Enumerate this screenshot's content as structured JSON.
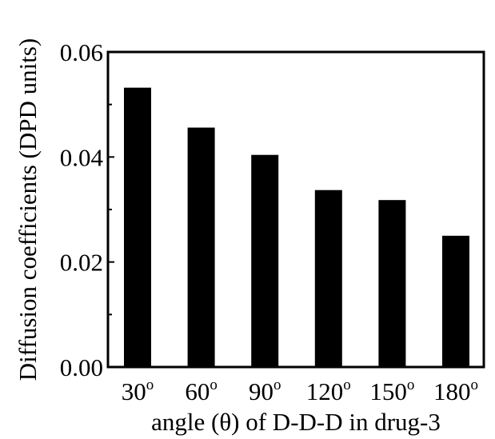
{
  "chart_data": {
    "type": "bar",
    "categories": [
      "30",
      "60",
      "90",
      "120",
      "150",
      "180"
    ],
    "category_suffix": "o",
    "values": [
      0.0532,
      0.0456,
      0.0404,
      0.0337,
      0.0318,
      0.025
    ],
    "title": "",
    "xlabel": "angle (θ) of D-D-D in drug-3",
    "ylabel": "Diffusion coefficients (DPD units)",
    "ylim": [
      0,
      0.06
    ],
    "yticks": [
      "0.00",
      "0.02",
      "0.04",
      "0.06"
    ],
    "grid": false,
    "bar_color": "#000000"
  }
}
